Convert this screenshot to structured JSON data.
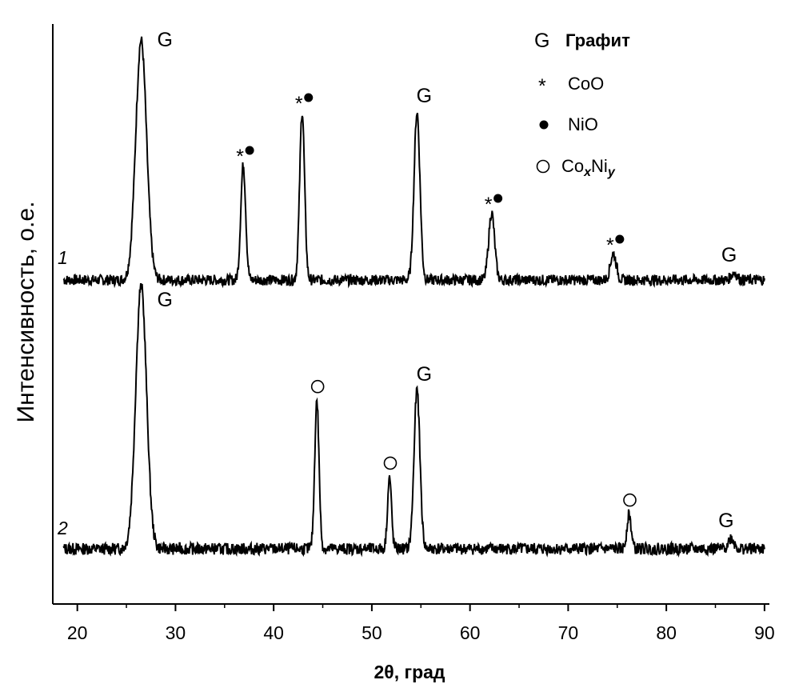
{
  "chart_data": {
    "type": "line",
    "xlabel": "2θ, град",
    "ylabel": "Интенсивность, о.е.",
    "xlim": [
      17.5,
      90.5
    ],
    "xticks": [
      "20",
      "30",
      "40",
      "50",
      "60",
      "70",
      "80",
      "90"
    ],
    "yticks_shown": false,
    "series": [
      {
        "name": "1",
        "peaks": [
          {
            "x": 26.5,
            "height": 1.0,
            "width": 0.55,
            "label": "G"
          },
          {
            "x": 36.9,
            "height": 0.48,
            "width": 0.25,
            "label": "*●"
          },
          {
            "x": 42.9,
            "height": 0.7,
            "width": 0.25,
            "label": "*●"
          },
          {
            "x": 54.6,
            "height": 0.7,
            "width": 0.3,
            "label": "G"
          },
          {
            "x": 62.2,
            "height": 0.28,
            "width": 0.3,
            "label": "*●"
          },
          {
            "x": 74.6,
            "height": 0.11,
            "width": 0.3,
            "label": "*●"
          },
          {
            "x": 86.9,
            "height": 0.03,
            "width": 0.3,
            "label": "G"
          }
        ]
      },
      {
        "name": "2",
        "peaks": [
          {
            "x": 26.5,
            "height": 1.0,
            "width": 0.55,
            "label": "G"
          },
          {
            "x": 44.4,
            "height": 0.56,
            "width": 0.22,
            "label": "○"
          },
          {
            "x": 51.8,
            "height": 0.27,
            "width": 0.2,
            "label": "○"
          },
          {
            "x": 54.6,
            "height": 0.6,
            "width": 0.3,
            "label": "G"
          },
          {
            "x": 76.2,
            "height": 0.13,
            "width": 0.22,
            "label": "○"
          },
          {
            "x": 86.6,
            "height": 0.04,
            "width": 0.3,
            "label": "G"
          }
        ]
      }
    ],
    "legend": {
      "placement": "top-right",
      "entries": [
        {
          "symbol": "G",
          "label": "Графит"
        },
        {
          "symbol": "*",
          "label": "CoO"
        },
        {
          "symbol": "●",
          "label": "NiO"
        },
        {
          "symbol": "○",
          "label_main": "Co",
          "label_sub1": "x",
          "label_mid": "Ni",
          "label_sub2": "y"
        }
      ]
    },
    "grid": false
  }
}
